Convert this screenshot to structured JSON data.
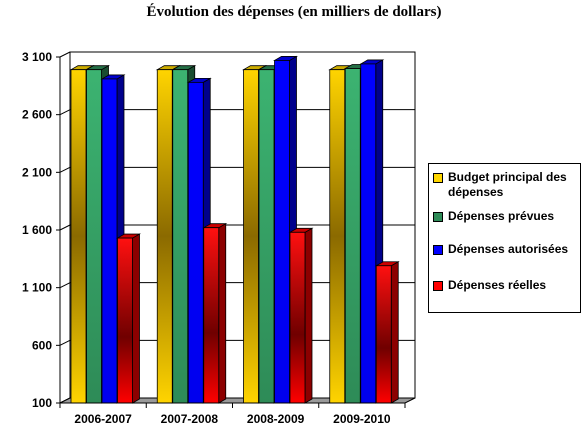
{
  "chart_data": {
    "type": "bar",
    "title": "Évolution des dépenses (en milliers de dollars)",
    "xlabel": "",
    "ylabel": "",
    "categories": [
      "2006-2007",
      "2007-2008",
      "2008-2009",
      "2009-2010"
    ],
    "ylim": [
      100,
      3100
    ],
    "yticks": [
      100,
      600,
      1100,
      1600,
      2100,
      2600,
      3100
    ],
    "ytick_labels": [
      "100",
      "600",
      "1 100",
      "1 600",
      "2 100",
      "2 600",
      "3 100"
    ],
    "grid": true,
    "legend_position": "right",
    "series": [
      {
        "name": "Budget principal des dépenses",
        "color": "#FFD700",
        "values": [
          2990,
          2990,
          2990,
          2990
        ]
      },
      {
        "name": "Dépenses prévues",
        "color": "#2E8B57",
        "values": [
          2990,
          2990,
          2990,
          3000
        ]
      },
      {
        "name": "Dépenses autorisées",
        "color": "#0000FF",
        "values": [
          2910,
          2880,
          3070,
          3040
        ]
      },
      {
        "name": "Dépenses réelles",
        "color": "#FF0000",
        "values": [
          1530,
          1620,
          1580,
          1290
        ]
      }
    ]
  }
}
